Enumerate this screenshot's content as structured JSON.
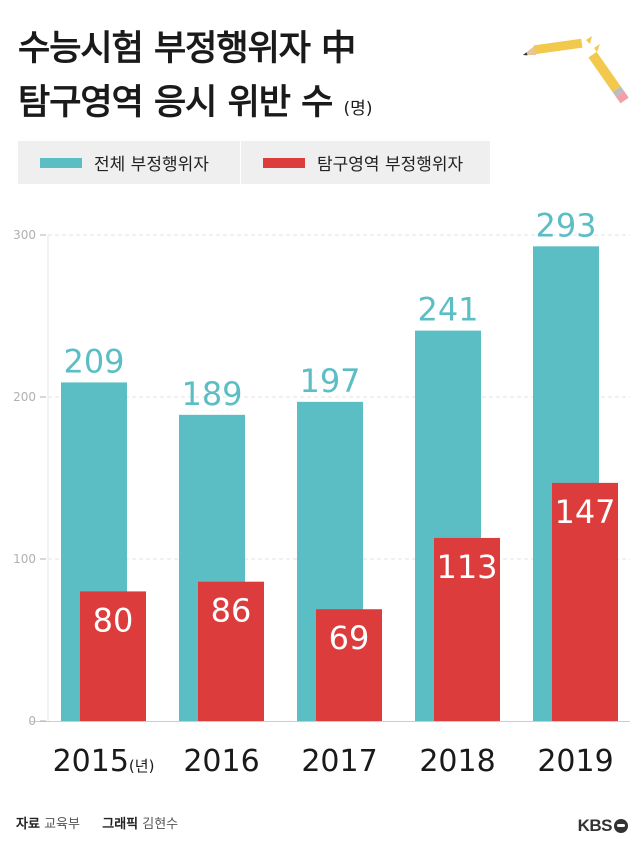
{
  "title_line1": "수능시험 부정행위자 中",
  "title_line2": "탐구영역 응시 위반 수",
  "unit": "(명)",
  "legend": [
    {
      "label": "전체 부정행위자",
      "color": "#5bbec5"
    },
    {
      "label": "탐구영역 부정행위자",
      "color": "#dd3c3c"
    }
  ],
  "chart_data": {
    "type": "bar",
    "categories": [
      "2015",
      "2016",
      "2017",
      "2018",
      "2019"
    ],
    "first_category_suffix": "(년)",
    "series": [
      {
        "name": "전체 부정행위자",
        "values": [
          209,
          189,
          197,
          241,
          293
        ],
        "color": "#5bbec5"
      },
      {
        "name": "탐구영역 부정행위자",
        "values": [
          80,
          86,
          69,
          113,
          147
        ],
        "color": "#dd3c3c"
      }
    ],
    "yticks": [
      0,
      100,
      200,
      300
    ],
    "ylim": [
      0,
      300
    ],
    "grid": "dashed"
  },
  "footer": {
    "source_label": "자료",
    "source_value": "교육부",
    "graphic_label": "그래픽",
    "graphic_value": "김현수"
  },
  "logo": "KBS"
}
